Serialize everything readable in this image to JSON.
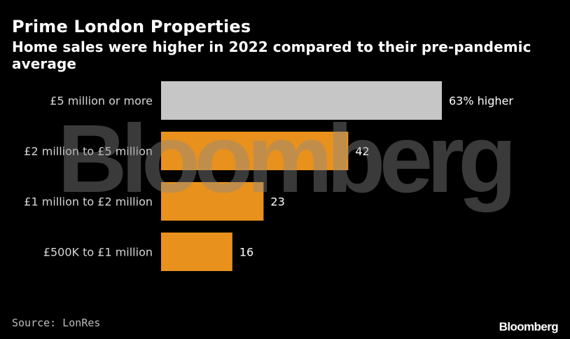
{
  "header": {
    "title": "Prime London Properties",
    "subtitle": "Home sales were higher in 2022 compared to their pre-pandemic average"
  },
  "footer": {
    "source": "Source: LonRes",
    "logo": "Bloomberg"
  },
  "watermark": "Bloomberg",
  "colors": {
    "background": "#000000",
    "highlight_bar": "#c6c6c6",
    "bar": "#e8911d",
    "text": "#ffffff",
    "axis_label": "#d6d6d6"
  },
  "chart_data": {
    "type": "bar",
    "orientation": "horizontal",
    "categories": [
      "£5 million or more",
      "£2 million to £5 million",
      "£1 million to £2 million",
      "£500K to £1 million"
    ],
    "values": [
      63,
      42,
      23,
      16
    ],
    "value_labels": [
      "63% higher",
      "42",
      "23",
      "16"
    ],
    "unit": "%",
    "xlim": [
      0,
      63
    ],
    "grid": false,
    "title": "Prime London Properties",
    "subtitle": "Home sales were higher in 2022 compared to their pre-pandemic average"
  }
}
